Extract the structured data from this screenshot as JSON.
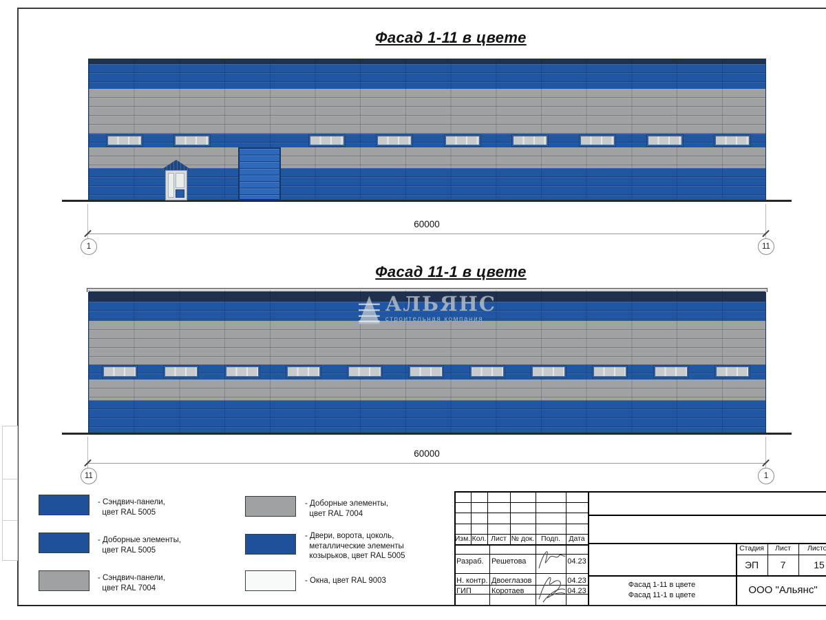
{
  "facade1": {
    "title": "Фасад 1-11 в цвете",
    "dimension": "60000",
    "axis_left": "1",
    "axis_right": "11",
    "window_slots": 10,
    "gate_slot": 2,
    "windows_count": 9
  },
  "facade2": {
    "title": "Фасад 11-1 в цвете",
    "dimension": "60000",
    "axis_left": "11",
    "axis_right": "1",
    "window_slots": 11,
    "windows_count": 11
  },
  "watermark": {
    "name": "АЛЬЯНС",
    "subtitle": "строительная компания"
  },
  "legend": {
    "items": [
      {
        "color_key": "ral5005",
        "label": "- Сэндвич-панели,\n  цвет RAL 5005"
      },
      {
        "color_key": "ral5005",
        "label": "- Доборные элементы,\n  цвет RAL 5005"
      },
      {
        "color_key": "ral7004",
        "label": "- Сэндвич-панели,\n  цвет RAL 7004"
      },
      {
        "color_key": "ral7004",
        "label": "- Доборные элементы,\n  цвет RAL 7004"
      },
      {
        "color_key": "ral5005",
        "label": "- Двери, ворота, цоколь,\n  металлические элементы\n  козырьков, цвет RAL 5005"
      },
      {
        "color_key": "ral9003",
        "label": "- Окна, цвет RAL 9003"
      }
    ]
  },
  "colors": {
    "ral5005": "#1f519b",
    "ral7004": "#9fa1a2",
    "ral9003": "#f7faf8",
    "navy": "#20304f",
    "gate_blue": "#2e68ba"
  },
  "title_block": {
    "columns": [
      "Изм.",
      "Кол.",
      "Лист",
      "№ док.",
      "Подп.",
      "Дата"
    ],
    "rows": [
      {
        "role": "Разраб.",
        "name": "Решетова",
        "date": "04.23"
      },
      {
        "role": "Н. контр.",
        "name": "Двоеглазов",
        "date": "04.23"
      },
      {
        "role": "ГИП",
        "name": "Коротаев",
        "date": "04.23"
      }
    ],
    "stage_label": "Стадия",
    "sheet_label": "Лист",
    "sheets_label": "Листов",
    "stage": "ЭП",
    "sheet": "7",
    "sheets": "15",
    "doc_title_line1": "Фасад 1-11 в цвете",
    "doc_title_line2": "Фасад 11-1 в цвете",
    "company": "ООО \"Альянс\""
  }
}
